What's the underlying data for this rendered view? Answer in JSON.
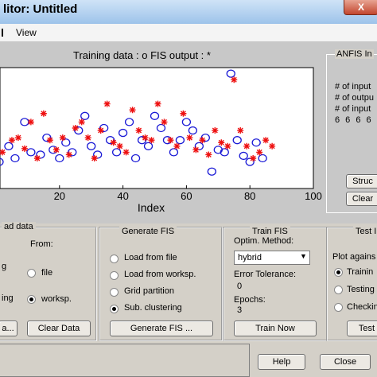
{
  "window": {
    "title": "litor: Untitled",
    "close_glyph": "X"
  },
  "menu": {
    "items": [
      "View"
    ]
  },
  "plot": {
    "title": "Training data : o   FIS output : *",
    "xlabel": "Index",
    "xticks": [
      "20",
      "40",
      "60",
      "80",
      "100"
    ],
    "colors": {
      "training": "#1a1ad6",
      "fis": "#ee1010"
    }
  },
  "anfis_info": {
    "title": "ANFIS In",
    "lines": [
      "# of input",
      "# of outpu",
      "# of input",
      "6  6  6  6"
    ],
    "structure_button": "Struc",
    "clear_button": "Clear"
  },
  "load_data": {
    "title": "ad data",
    "from_label": "From:",
    "left_labels": [
      "g",
      "ing"
    ],
    "options": [
      {
        "label": "file",
        "selected": false
      },
      {
        "label": "worksp.",
        "selected": true
      }
    ],
    "load_button": "a...",
    "clear_button": "Clear Data"
  },
  "generate_fis": {
    "title": "Generate FIS",
    "options": [
      {
        "label": "Load from file",
        "selected": false
      },
      {
        "label": "Load from worksp.",
        "selected": false
      },
      {
        "label": "Grid partition",
        "selected": false
      },
      {
        "label": "Sub. clustering",
        "selected": true
      }
    ],
    "button": "Generate FIS ..."
  },
  "train_fis": {
    "title": "Train FIS",
    "optim_label": "Optim. Method:",
    "method": "hybrid",
    "error_label": "Error Tolerance:",
    "error_value": "0",
    "epochs_label": "Epochs:",
    "epochs_value": "3",
    "button": "Train Now"
  },
  "test_fis": {
    "title": "Test I",
    "plot_against": "Plot agains",
    "options": [
      {
        "label": "Trainin",
        "selected": true
      },
      {
        "label": "Testing",
        "selected": false
      },
      {
        "label": "Checkin",
        "selected": false
      }
    ],
    "button": "Test"
  },
  "footer": {
    "help_button": "Help",
    "close_button": "Close"
  },
  "chart_data": {
    "type": "scatter",
    "title": "Training data : o   FIS output : *",
    "xlabel": "Index",
    "ylabel": "",
    "xlim": [
      0,
      100
    ],
    "ylim": [
      0,
      1
    ],
    "series": [
      {
        "name": "Training data : o",
        "marker": "o",
        "color": "#1a1ad6",
        "points": [
          [
            1,
            0.22
          ],
          [
            4,
            0.35
          ],
          [
            6,
            0.25
          ],
          [
            9,
            0.55
          ],
          [
            11,
            0.3
          ],
          [
            14,
            0.28
          ],
          [
            16,
            0.42
          ],
          [
            18,
            0.32
          ],
          [
            20,
            0.25
          ],
          [
            22,
            0.38
          ],
          [
            24,
            0.3
          ],
          [
            26,
            0.48
          ],
          [
            28,
            0.6
          ],
          [
            30,
            0.35
          ],
          [
            32,
            0.28
          ],
          [
            34,
            0.5
          ],
          [
            36,
            0.4
          ],
          [
            38,
            0.3
          ],
          [
            40,
            0.46
          ],
          [
            42,
            0.55
          ],
          [
            44,
            0.25
          ],
          [
            46,
            0.4
          ],
          [
            48,
            0.35
          ],
          [
            50,
            0.6
          ],
          [
            52,
            0.5
          ],
          [
            54,
            0.4
          ],
          [
            56,
            0.3
          ],
          [
            58,
            0.4
          ],
          [
            60,
            0.55
          ],
          [
            62,
            0.48
          ],
          [
            64,
            0.35
          ],
          [
            66,
            0.42
          ],
          [
            68,
            0.14
          ],
          [
            70,
            0.32
          ],
          [
            72,
            0.3
          ],
          [
            74,
            0.95
          ],
          [
            76,
            0.4
          ],
          [
            78,
            0.27
          ],
          [
            80,
            0.22
          ],
          [
            82,
            0.38
          ],
          [
            84,
            0.25
          ]
        ]
      },
      {
        "name": "FIS output : *",
        "marker": "*",
        "color": "#ee1010",
        "points": [
          [
            0,
            0.8
          ],
          [
            2,
            0.3
          ],
          [
            5,
            0.4
          ],
          [
            7,
            0.42
          ],
          [
            9,
            0.33
          ],
          [
            11,
            0.55
          ],
          [
            13,
            0.25
          ],
          [
            15,
            0.62
          ],
          [
            17,
            0.4
          ],
          [
            19,
            0.32
          ],
          [
            21,
            0.42
          ],
          [
            23,
            0.28
          ],
          [
            25,
            0.5
          ],
          [
            27,
            0.55
          ],
          [
            29,
            0.42
          ],
          [
            31,
            0.25
          ],
          [
            33,
            0.48
          ],
          [
            35,
            0.7
          ],
          [
            37,
            0.38
          ],
          [
            39,
            0.35
          ],
          [
            41,
            0.3
          ],
          [
            43,
            0.65
          ],
          [
            45,
            0.48
          ],
          [
            47,
            0.42
          ],
          [
            49,
            0.4
          ],
          [
            51,
            0.7
          ],
          [
            53,
            0.55
          ],
          [
            55,
            0.4
          ],
          [
            57,
            0.35
          ],
          [
            59,
            0.62
          ],
          [
            61,
            0.42
          ],
          [
            63,
            0.32
          ],
          [
            65,
            0.4
          ],
          [
            67,
            0.28
          ],
          [
            69,
            0.48
          ],
          [
            71,
            0.38
          ],
          [
            73,
            0.35
          ],
          [
            75,
            0.9
          ],
          [
            77,
            0.48
          ],
          [
            79,
            0.35
          ],
          [
            81,
            0.25
          ],
          [
            83,
            0.3
          ],
          [
            85,
            0.4
          ],
          [
            87,
            0.35
          ]
        ]
      }
    ]
  }
}
